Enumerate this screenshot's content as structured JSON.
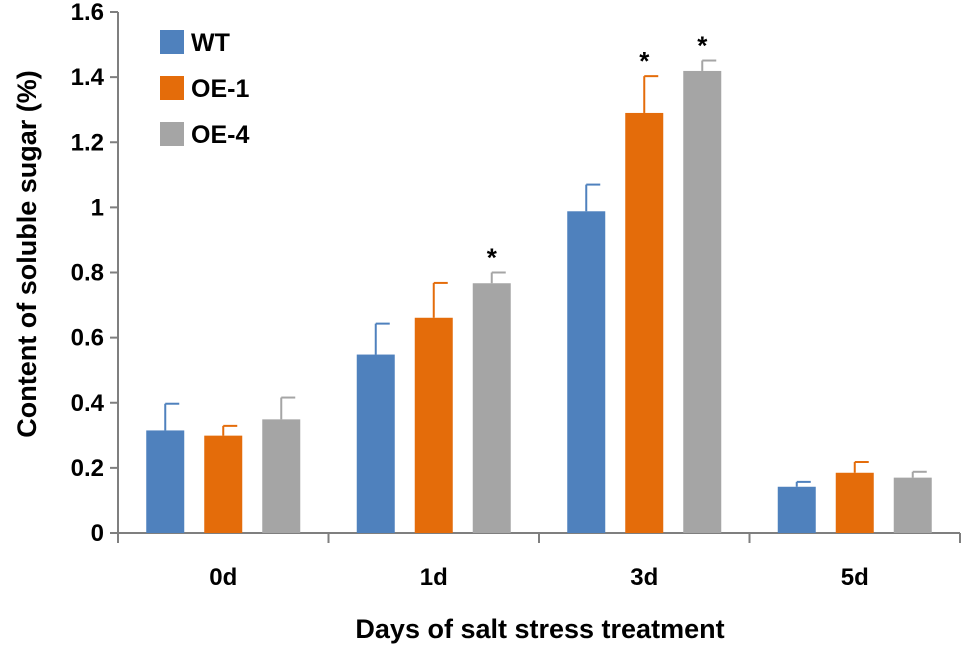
{
  "chart_data": {
    "type": "bar",
    "title": "",
    "xlabel": "Days of salt stress treatment",
    "ylabel": "Content of soluble sugar (%)",
    "categories": [
      "0d",
      "1d",
      "3d",
      "5d"
    ],
    "ylim": [
      0,
      1.6
    ],
    "yticks": [
      "0",
      "0.2",
      "0.4",
      "0.6",
      "0.8",
      "1",
      "1.2",
      "1.4",
      "1.6"
    ],
    "ytick_values": [
      0,
      0.2,
      0.4,
      0.6,
      0.8,
      1.0,
      1.2,
      1.4,
      1.6
    ],
    "legend_position": "top-left",
    "significance_marker": "*",
    "series": [
      {
        "name": "WT",
        "color": "#4f81bd",
        "values": [
          0.315,
          0.548,
          0.988,
          0.142
        ],
        "errors": [
          0.082,
          0.095,
          0.082,
          0.015
        ],
        "significant": [
          false,
          false,
          false,
          false
        ]
      },
      {
        "name": "OE-1",
        "color": "#e46c0a",
        "values": [
          0.299,
          0.661,
          1.29,
          0.185
        ],
        "errors": [
          0.03,
          0.107,
          0.113,
          0.033
        ],
        "significant": [
          false,
          false,
          true,
          false
        ]
      },
      {
        "name": "OE-4",
        "color": "#a5a5a5",
        "values": [
          0.349,
          0.767,
          1.419,
          0.17
        ],
        "errors": [
          0.067,
          0.033,
          0.032,
          0.018
        ],
        "significant": [
          false,
          true,
          true,
          false
        ]
      }
    ]
  }
}
